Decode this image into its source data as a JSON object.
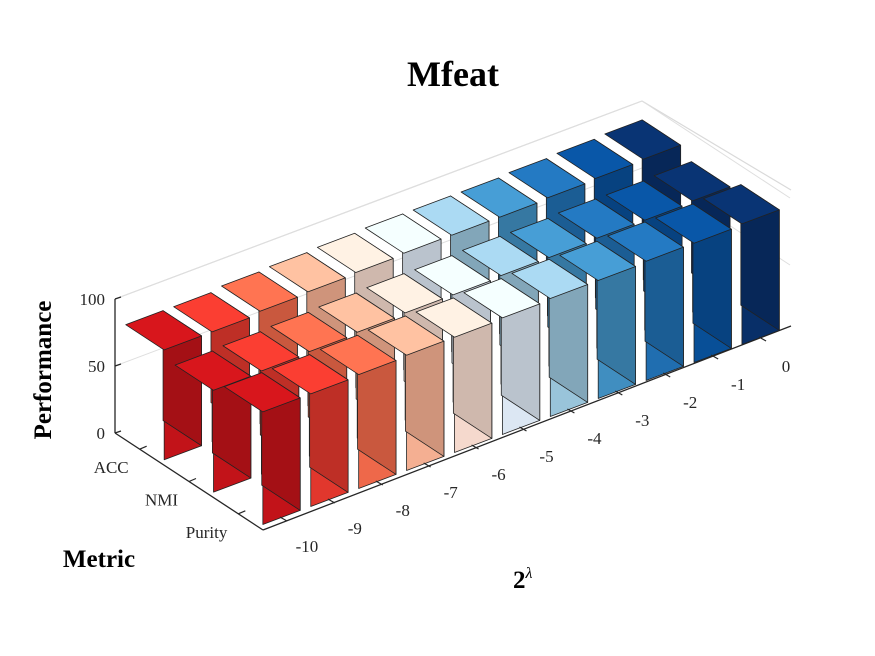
{
  "chart_data": {
    "type": "bar3d",
    "title": "Mfeat",
    "xlabel": "2",
    "xlabel_superscript": "λ",
    "ylabel": "Metric",
    "zlabel": "Performance",
    "x_categories": [
      "-10",
      "-9",
      "-8",
      "-7",
      "-6",
      "-5",
      "-4",
      "-3",
      "-2",
      "-1",
      "0"
    ],
    "y_categories": [
      "ACC",
      "NMI",
      "Purity"
    ],
    "z_ticks": [
      "0",
      "50",
      "100"
    ],
    "zlim": [
      0,
      100
    ],
    "grid": true,
    "colormap": "red-to-blue diverging",
    "colors": [
      "#c8141a",
      "#e8392e",
      "#f56b4c",
      "#fcb496",
      "#fde0d3",
      "#e3eefa",
      "#9ecae1",
      "#4292c6",
      "#2171b5",
      "#08519c",
      "#08306b"
    ],
    "series": [
      {
        "name": "ACC",
        "values": [
          82,
          82,
          84,
          85,
          86,
          87,
          87,
          87,
          88,
          89,
          90
        ]
      },
      {
        "name": "NMI",
        "values": [
          76,
          77,
          78,
          79,
          80,
          80,
          81,
          81,
          82,
          82,
          83
        ]
      },
      {
        "name": "Purity",
        "values": [
          84,
          84,
          85,
          86,
          86,
          87,
          88,
          88,
          89,
          89,
          90
        ]
      }
    ]
  }
}
